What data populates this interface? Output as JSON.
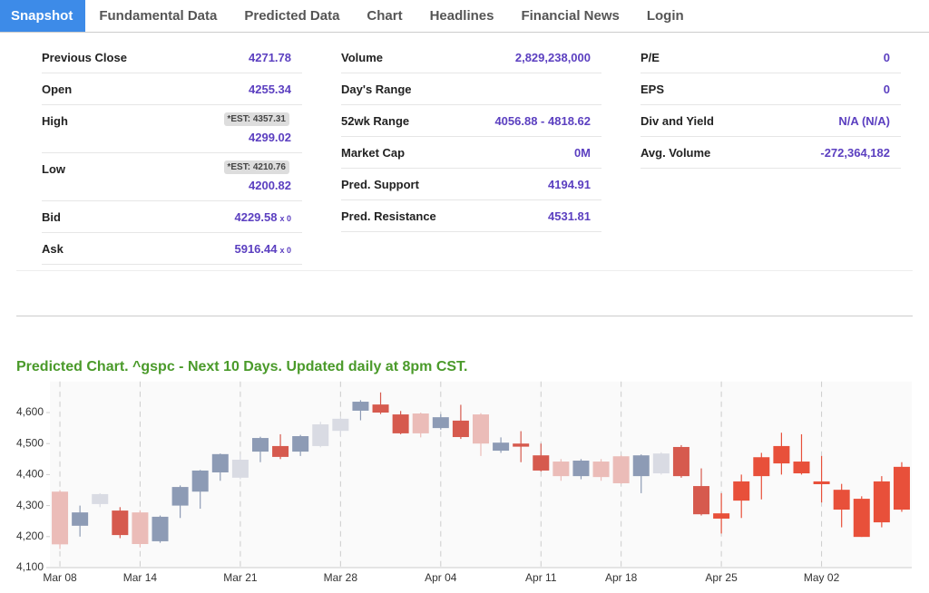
{
  "tabs": [
    "Snapshot",
    "Fundamental Data",
    "Predicted Data",
    "Chart",
    "Headlines",
    "Financial News",
    "Login"
  ],
  "snapshot": {
    "columns": [
      {
        "rows": [
          {
            "label": "Previous Close",
            "value": "4271.78"
          },
          {
            "label": "Open",
            "value": "4255.34"
          },
          {
            "label": "High",
            "est": "*EST: 4357.31",
            "value": "4299.02"
          },
          {
            "label": "Low",
            "est": "*EST: 4210.76",
            "value": "4200.82"
          },
          {
            "label": "Bid",
            "value": "4229.58",
            "suffix": "x 0"
          },
          {
            "label": "Ask",
            "value": "5916.44",
            "suffix": "x 0"
          }
        ]
      },
      {
        "rows": [
          {
            "label": "Volume",
            "value": "2,829,238,000"
          },
          {
            "label": "Day's Range"
          },
          {
            "label": "52wk Range",
            "value": "4056.88 - 4818.62"
          },
          {
            "label": "Market Cap",
            "value": "0M"
          },
          {
            "label": "Pred. Support",
            "value": "4194.91"
          },
          {
            "label": "Pred. Resistance",
            "value": "4531.81"
          }
        ]
      },
      {
        "rows": [
          {
            "label": "P/E",
            "value": "0"
          },
          {
            "label": "EPS",
            "value": "0"
          },
          {
            "label": "Div and Yield",
            "value": "N/A (N/A)"
          },
          {
            "label": "Avg. Volume",
            "value": "-272,364,182"
          }
        ]
      }
    ]
  },
  "chart_data": {
    "type": "candlestick",
    "title": "Predicted Chart. ^gspc - Next 10 Days. Updated daily at 8pm CST.",
    "categories": [
      "Mar 08",
      null,
      null,
      null,
      "Mar 14",
      null,
      null,
      null,
      null,
      "Mar 21",
      null,
      null,
      null,
      null,
      "Mar 28",
      null,
      null,
      null,
      null,
      "Apr 04",
      null,
      null,
      null,
      null,
      "Apr 11",
      null,
      null,
      null,
      "Apr 18",
      null,
      null,
      null,
      null,
      "Apr 25",
      null,
      null,
      null,
      null,
      "May 02",
      null,
      null,
      null,
      null
    ],
    "candles": [
      {
        "open": 4345,
        "close": 4175,
        "high": 4350,
        "low": 4160,
        "color": "#ebbcb8"
      },
      {
        "open": 4235,
        "close": 4278,
        "high": 4300,
        "low": 4200,
        "color": "#8d9bb5"
      },
      {
        "open": 4305,
        "close": 4337,
        "high": 4340,
        "low": 4295,
        "color": "#d9dbe3"
      },
      {
        "open": 4284,
        "close": 4205,
        "high": 4295,
        "low": 4195,
        "color": "#d65a4e"
      },
      {
        "open": 4278,
        "close": 4176,
        "high": 4285,
        "low": 4165,
        "color": "#ebbcb8"
      },
      {
        "open": 4185,
        "close": 4264,
        "high": 4268,
        "low": 4180,
        "color": "#8d9bb5"
      },
      {
        "open": 4300,
        "close": 4360,
        "high": 4365,
        "low": 4260,
        "color": "#8d9bb5"
      },
      {
        "open": 4345,
        "close": 4413,
        "high": 4415,
        "low": 4290,
        "color": "#8d9bb5"
      },
      {
        "open": 4407,
        "close": 4466,
        "high": 4468,
        "low": 4380,
        "color": "#8d9bb5"
      },
      {
        "open": 4390,
        "close": 4448,
        "high": 4465,
        "low": 4385,
        "color": "#d9dbe3"
      },
      {
        "open": 4474,
        "close": 4518,
        "high": 4522,
        "low": 4440,
        "color": "#8d9bb5"
      },
      {
        "open": 4492,
        "close": 4457,
        "high": 4530,
        "low": 4450,
        "color": "#d65a4e"
      },
      {
        "open": 4474,
        "close": 4524,
        "high": 4528,
        "low": 4460,
        "color": "#8d9bb5"
      },
      {
        "open": 4492,
        "close": 4562,
        "high": 4570,
        "low": 4488,
        "color": "#d9dbe3"
      },
      {
        "open": 4541,
        "close": 4580,
        "high": 4585,
        "low": 4525,
        "color": "#d9dbe3"
      },
      {
        "open": 4606,
        "close": 4635,
        "high": 4640,
        "low": 4575,
        "color": "#8d9bb5"
      },
      {
        "open": 4626,
        "close": 4600,
        "high": 4665,
        "low": 4595,
        "color": "#d65a4e"
      },
      {
        "open": 4594,
        "close": 4533,
        "high": 4605,
        "low": 4530,
        "color": "#d65a4e"
      },
      {
        "open": 4597,
        "close": 4533,
        "high": 4600,
        "low": 4520,
        "color": "#ebbcb8"
      },
      {
        "open": 4550,
        "close": 4585,
        "high": 4595,
        "low": 4545,
        "color": "#8d9bb5"
      },
      {
        "open": 4574,
        "close": 4521,
        "high": 4625,
        "low": 4515,
        "color": "#d65a4e"
      },
      {
        "open": 4594,
        "close": 4500,
        "high": 4598,
        "low": 4460,
        "color": "#ebbcb8"
      },
      {
        "open": 4477,
        "close": 4503,
        "high": 4520,
        "low": 4470,
        "color": "#8d9bb5"
      },
      {
        "open": 4500,
        "close": 4490,
        "high": 4540,
        "low": 4440,
        "color": "#d65a4e"
      },
      {
        "open": 4462,
        "close": 4413,
        "high": 4500,
        "low": 4410,
        "color": "#d65a4e"
      },
      {
        "open": 4442,
        "close": 4395,
        "high": 4450,
        "low": 4380,
        "color": "#ebbcb8"
      },
      {
        "open": 4395,
        "close": 4445,
        "high": 4450,
        "low": 4385,
        "color": "#8d9bb5"
      },
      {
        "open": 4442,
        "close": 4392,
        "high": 4450,
        "low": 4380,
        "color": "#ebbcb8"
      },
      {
        "open": 4459,
        "close": 4372,
        "high": 4462,
        "low": 4370,
        "color": "#ebbcb8"
      },
      {
        "open": 4395,
        "close": 4462,
        "high": 4465,
        "low": 4340,
        "color": "#8d9bb5"
      },
      {
        "open": 4468,
        "close": 4404,
        "high": 4472,
        "low": 4400,
        "color": "#d9dbe3"
      },
      {
        "open": 4489,
        "close": 4395,
        "high": 4495,
        "low": 4390,
        "color": "#d65a4e"
      },
      {
        "open": 4363,
        "close": 4272,
        "high": 4420,
        "low": 4268,
        "color": "#d65a4e"
      },
      {
        "open": 4275,
        "close": 4258,
        "high": 4340,
        "low": 4210,
        "color": "#e8503a"
      },
      {
        "open": 4316,
        "close": 4378,
        "high": 4400,
        "low": 4260,
        "color": "#e8503a"
      },
      {
        "open": 4395,
        "close": 4456,
        "high": 4470,
        "low": 4320,
        "color": "#e8503a"
      },
      {
        "open": 4436,
        "close": 4492,
        "high": 4535,
        "low": 4400,
        "color": "#e8503a"
      },
      {
        "open": 4442,
        "close": 4404,
        "high": 4530,
        "low": 4400,
        "color": "#e8503a"
      },
      {
        "open": 4378,
        "close": 4369,
        "high": 4460,
        "low": 4310,
        "color": "#e8503a"
      },
      {
        "open": 4351,
        "close": 4287,
        "high": 4370,
        "low": 4230,
        "color": "#e8503a"
      },
      {
        "open": 4322,
        "close": 4199,
        "high": 4330,
        "low": 4199,
        "color": "#e8503a"
      },
      {
        "open": 4246,
        "close": 4378,
        "high": 4395,
        "low": 4230,
        "color": "#e8503a"
      },
      {
        "open": 4287,
        "close": 4425,
        "high": 4440,
        "low": 4280,
        "color": "#e8503a"
      }
    ],
    "ylim": [
      4100,
      4700
    ],
    "yticks": [
      {
        "value": 4100,
        "label": "4,100"
      },
      {
        "value": 4200,
        "label": "4,200"
      },
      {
        "value": 4300,
        "label": "4,300"
      },
      {
        "value": 4400,
        "label": "4,400"
      },
      {
        "value": 4500,
        "label": "4,500"
      },
      {
        "value": 4600,
        "label": "4,600"
      }
    ]
  }
}
